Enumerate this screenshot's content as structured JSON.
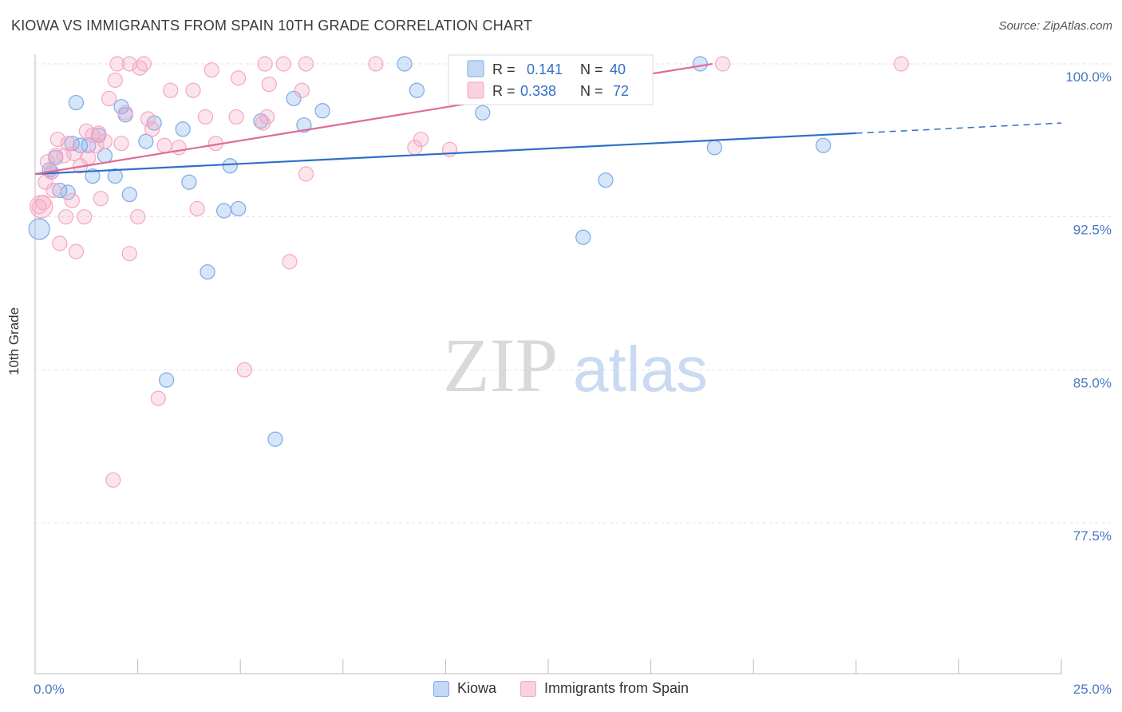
{
  "chart_data": {
    "type": "scatter",
    "title": "KIOWA VS IMMIGRANTS FROM SPAIN 10TH GRADE CORRELATION CHART",
    "source": "Source: ZipAtlas.com",
    "ylabel": "10th Grade",
    "xlim": [
      0,
      25
    ],
    "ylim": [
      70,
      101
    ],
    "x_tick_labels": [
      "0.0%",
      "25.0%"
    ],
    "y_ticks": [
      77.5,
      85.0,
      92.5,
      100.0
    ],
    "y_tick_labels": [
      "77.5%",
      "85.0%",
      "92.5%",
      "100.0%"
    ],
    "watermark": {
      "zip": "ZIP",
      "atlas": "atlas"
    },
    "series": [
      {
        "name": "Kiowa",
        "color": "#7aaae8",
        "line_color": "#2f6fc9",
        "legend_r_label": "R =",
        "legend_r": "0.141",
        "legend_n_label": "N =",
        "legend_n": "40",
        "trend": {
          "x0": 0,
          "y0": 94.6,
          "x1": 20,
          "y1": 96.6,
          "dash_to_x": 25,
          "dash_to_y": 97.1
        },
        "points": [
          [
            0.1,
            91.9
          ],
          [
            0.35,
            94.8
          ],
          [
            0.4,
            94.7
          ],
          [
            0.5,
            95.4
          ],
          [
            0.6,
            93.8
          ],
          [
            0.8,
            93.7
          ],
          [
            0.9,
            96.1
          ],
          [
            1.0,
            98.1
          ],
          [
            1.1,
            96.0
          ],
          [
            1.3,
            96.0
          ],
          [
            1.4,
            94.5
          ],
          [
            1.55,
            96.5
          ],
          [
            1.7,
            95.5
          ],
          [
            1.95,
            94.5
          ],
          [
            2.1,
            97.9
          ],
          [
            2.2,
            97.5
          ],
          [
            2.3,
            93.6
          ],
          [
            2.7,
            96.2
          ],
          [
            2.9,
            97.1
          ],
          [
            3.2,
            84.5
          ],
          [
            3.6,
            96.8
          ],
          [
            3.75,
            94.2
          ],
          [
            4.2,
            89.8
          ],
          [
            4.6,
            92.8
          ],
          [
            4.75,
            95.0
          ],
          [
            4.95,
            92.9
          ],
          [
            5.5,
            97.2
          ],
          [
            5.85,
            81.6
          ],
          [
            6.3,
            98.3
          ],
          [
            6.55,
            97.0
          ],
          [
            7.0,
            97.7
          ],
          [
            9.0,
            100.0
          ],
          [
            9.3,
            98.7
          ],
          [
            10.9,
            97.6
          ],
          [
            13.35,
            91.5
          ],
          [
            13.9,
            94.3
          ],
          [
            16.2,
            100.0
          ],
          [
            16.55,
            95.9
          ],
          [
            19.2,
            96.0
          ]
        ]
      },
      {
        "name": "Immigrants from Spain",
        "color": "#f4a6c2",
        "line_color": "#e06a96",
        "legend_r_label": "R =",
        "legend_r": "0.338",
        "legend_n_label": "N =",
        "legend_n": "72",
        "trend": {
          "x0": 0,
          "y0": 94.6,
          "x1": 16.5,
          "y1": 100.0
        },
        "points": [
          [
            0.1,
            93.0
          ],
          [
            0.2,
            93.2
          ],
          [
            0.25,
            94.2
          ],
          [
            0.3,
            95.2
          ],
          [
            0.4,
            94.7
          ],
          [
            0.45,
            93.8
          ],
          [
            0.5,
            95.5
          ],
          [
            0.55,
            96.3
          ],
          [
            0.6,
            91.2
          ],
          [
            0.7,
            95.5
          ],
          [
            0.75,
            92.5
          ],
          [
            0.8,
            96.1
          ],
          [
            0.9,
            93.3
          ],
          [
            0.95,
            95.6
          ],
          [
            1.0,
            90.8
          ],
          [
            1.1,
            95.0
          ],
          [
            1.2,
            92.5
          ],
          [
            1.25,
            96.7
          ],
          [
            1.3,
            95.4
          ],
          [
            1.4,
            96.5
          ],
          [
            1.5,
            96.0
          ],
          [
            1.55,
            96.6
          ],
          [
            1.6,
            93.4
          ],
          [
            1.7,
            96.2
          ],
          [
            1.8,
            98.3
          ],
          [
            1.9,
            79.6
          ],
          [
            1.95,
            99.2
          ],
          [
            2.0,
            100.0
          ],
          [
            2.1,
            96.1
          ],
          [
            2.2,
            97.6
          ],
          [
            2.3,
            100.0
          ],
          [
            2.3,
            90.7
          ],
          [
            2.5,
            92.5
          ],
          [
            2.55,
            99.8
          ],
          [
            2.65,
            100.0
          ],
          [
            2.75,
            97.3
          ],
          [
            2.85,
            96.8
          ],
          [
            3.0,
            83.6
          ],
          [
            3.15,
            96.0
          ],
          [
            3.3,
            98.7
          ],
          [
            3.5,
            95.9
          ],
          [
            3.85,
            98.7
          ],
          [
            3.95,
            92.9
          ],
          [
            4.15,
            97.4
          ],
          [
            4.3,
            99.7
          ],
          [
            4.4,
            96.1
          ],
          [
            4.9,
            97.4
          ],
          [
            4.95,
            99.3
          ],
          [
            5.1,
            85.0
          ],
          [
            5.55,
            97.1
          ],
          [
            5.65,
            97.4
          ],
          [
            5.6,
            100.0
          ],
          [
            5.7,
            99.0
          ],
          [
            6.05,
            100.0
          ],
          [
            6.2,
            90.3
          ],
          [
            6.5,
            98.7
          ],
          [
            6.6,
            94.6
          ],
          [
            6.6,
            100.0
          ],
          [
            8.3,
            100.0
          ],
          [
            9.25,
            95.9
          ],
          [
            9.4,
            96.3
          ],
          [
            10.1,
            95.8
          ],
          [
            11.5,
            100.0
          ],
          [
            16.75,
            100.0
          ],
          [
            21.1,
            100.0
          ]
        ]
      }
    ],
    "legend_position": "top-center",
    "bottom_legend_position": "bottom-center"
  }
}
